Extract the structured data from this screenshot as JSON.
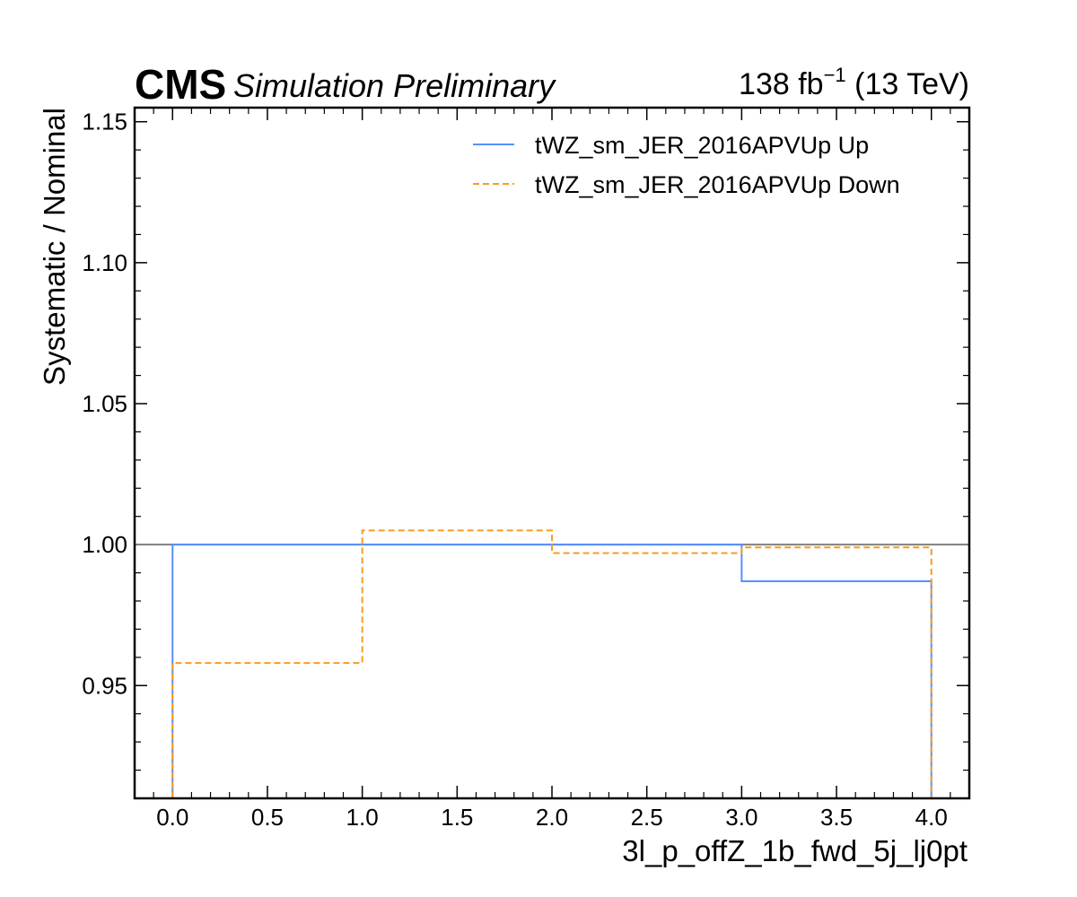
{
  "header": {
    "experiment": "CMS",
    "status": "Simulation Preliminary",
    "lumi_prefix": "138 fb",
    "lumi_exp": "−1",
    "lumi_suffix": " (13 TeV)"
  },
  "chart_data": {
    "type": "line",
    "drawstyle": "step",
    "xlabel": "3l_p_offZ_1b_fwd_5j_lj0pt",
    "ylabel": "Systematic / Nominal",
    "xlim": [
      -0.2,
      4.2
    ],
    "ylim": [
      0.91,
      1.155
    ],
    "xticks": [
      "0.0",
      "0.5",
      "1.0",
      "1.5",
      "2.0",
      "2.5",
      "3.0",
      "3.5",
      "4.0"
    ],
    "yticks": [
      "0.95",
      "1.00",
      "1.05",
      "1.10",
      "1.15"
    ],
    "bin_edges": [
      0,
      1,
      2,
      3,
      4
    ],
    "reference_line": 1.0,
    "legend_position": "top-right",
    "series": [
      {
        "name": "tWZ_sm_JER_2016APVUp Up",
        "color": "#5790fc",
        "style": "solid",
        "values": [
          1.0,
          1.0,
          1.0,
          0.987
        ]
      },
      {
        "name": "tWZ_sm_JER_2016APVUp Down",
        "color": "#f89c20",
        "style": "dashed",
        "values": [
          0.958,
          1.005,
          0.997,
          0.999
        ]
      }
    ],
    "reference_color": "#808080"
  }
}
